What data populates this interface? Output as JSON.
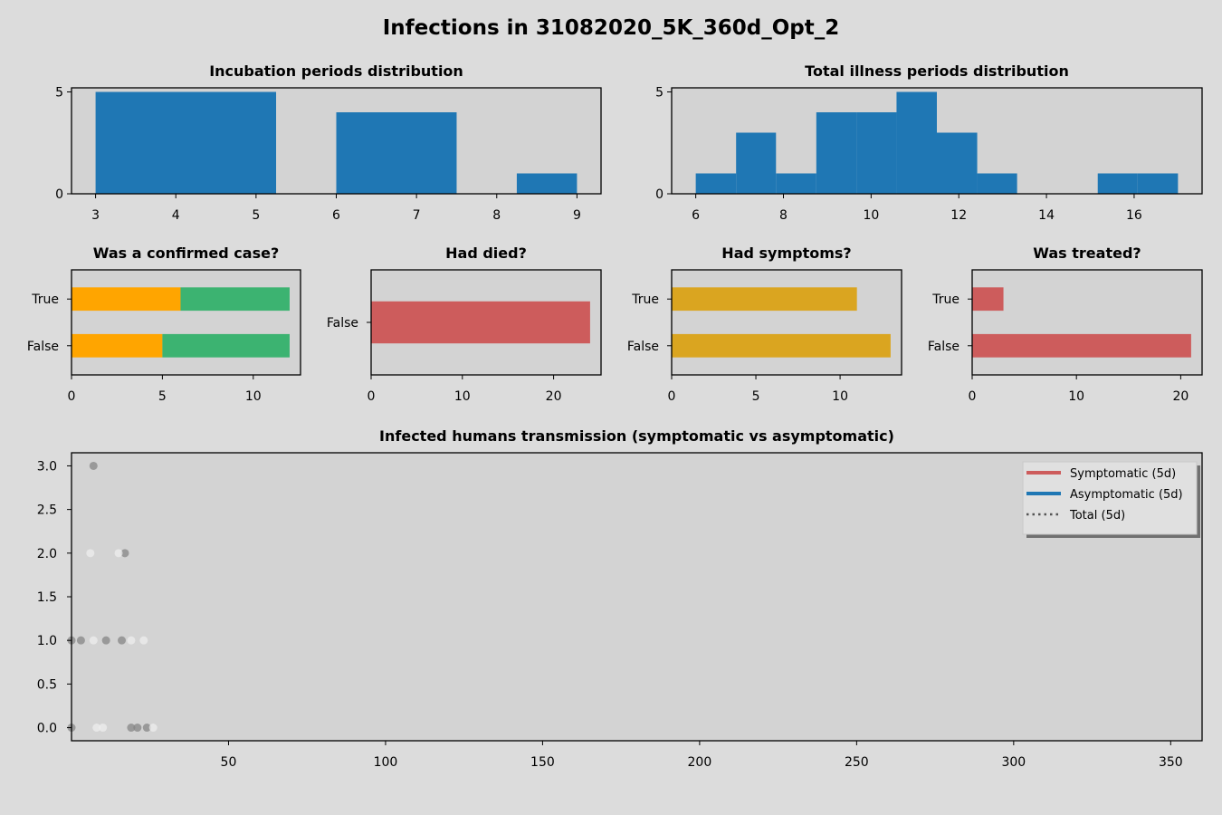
{
  "figure": {
    "title": "Infections in 31082020_5K_360d_Opt_2",
    "background": "#dcdcdc",
    "axes_facecolor": "#d3d3d3"
  },
  "chart_data": [
    {
      "id": "incubation",
      "type": "bar",
      "subtype": "histogram",
      "title": "Incubation periods distribution",
      "xlim": [
        2.7,
        9.3
      ],
      "ylim": [
        0,
        5.2
      ],
      "xticks": [
        3,
        4,
        5,
        6,
        7,
        8,
        9
      ],
      "yticks": [
        0,
        5
      ],
      "bins": [
        {
          "x0": 3.0,
          "x1": 5.25,
          "count": 5
        },
        {
          "x0": 6.0,
          "x1": 7.5,
          "count": 4
        },
        {
          "x0": 8.25,
          "x1": 9.0,
          "count": 1
        }
      ],
      "color": "#1f77b4"
    },
    {
      "id": "illness",
      "type": "bar",
      "subtype": "histogram",
      "title": "Total illness periods distribution",
      "xlim": [
        5.45,
        17.55
      ],
      "ylim": [
        0,
        5.2
      ],
      "xticks": [
        6,
        8,
        10,
        12,
        14,
        16
      ],
      "yticks": [
        0,
        5
      ],
      "bins": [
        {
          "x0": 6.0,
          "x1": 6.92,
          "count": 1
        },
        {
          "x0": 6.92,
          "x1": 7.83,
          "count": 3
        },
        {
          "x0": 7.83,
          "x1": 8.75,
          "count": 1
        },
        {
          "x0": 8.75,
          "x1": 9.67,
          "count": 4
        },
        {
          "x0": 9.67,
          "x1": 10.58,
          "count": 4
        },
        {
          "x0": 10.58,
          "x1": 11.5,
          "count": 5
        },
        {
          "x0": 11.5,
          "x1": 12.42,
          "count": 3
        },
        {
          "x0": 12.42,
          "x1": 13.33,
          "count": 1
        },
        {
          "x0": 15.17,
          "x1": 16.08,
          "count": 1
        },
        {
          "x0": 16.08,
          "x1": 17.0,
          "count": 1
        }
      ],
      "color": "#1f77b4"
    },
    {
      "id": "confirmed",
      "type": "bar",
      "subtype": "stacked-horizontal",
      "title": "Was a confirmed case?",
      "categories": [
        "False",
        "True"
      ],
      "xlim": [
        0,
        12.6
      ],
      "xticks": [
        0,
        5,
        10
      ],
      "series": [
        {
          "values": [
            5,
            6
          ],
          "color": "#ffa500"
        },
        {
          "values": [
            7,
            6
          ],
          "color": "#3cb371"
        }
      ]
    },
    {
      "id": "died",
      "type": "bar",
      "subtype": "horizontal",
      "title": "Had died?",
      "categories": [
        "False"
      ],
      "xlim": [
        0,
        25.2
      ],
      "xticks": [
        0,
        10,
        20
      ],
      "values": [
        24
      ],
      "colors": [
        "#cd5c5c"
      ]
    },
    {
      "id": "symptoms",
      "type": "bar",
      "subtype": "horizontal",
      "title": "Had symptoms?",
      "categories": [
        "False",
        "True"
      ],
      "xlim": [
        0,
        13.65
      ],
      "xticks": [
        0,
        5,
        10
      ],
      "values": [
        13,
        11
      ],
      "colors": [
        "#daa520",
        "#daa520"
      ]
    },
    {
      "id": "treated",
      "type": "bar",
      "subtype": "horizontal",
      "title": "Was treated?",
      "categories": [
        "False",
        "True"
      ],
      "xlim": [
        0,
        22.05
      ],
      "xticks": [
        0,
        10,
        20
      ],
      "values": [
        21,
        3
      ],
      "colors": [
        "#cd5c5c",
        "#cd5c5c"
      ]
    },
    {
      "id": "transmission",
      "type": "scatter",
      "title": "Infected humans transmission (symptomatic vs asymptomatic)",
      "xlim": [
        0,
        360
      ],
      "ylim": [
        -0.15,
        3.15
      ],
      "xticks": [
        50,
        100,
        150,
        200,
        250,
        300,
        350
      ],
      "yticks": [
        0.0,
        0.5,
        1.0,
        1.5,
        2.0,
        2.5,
        3.0
      ],
      "ytick_labels": [
        "0.0",
        "0.5",
        "1.0",
        "1.5",
        "2.0",
        "2.5",
        "3.0"
      ],
      "series": [
        {
          "role": "symptomatic-points",
          "color": "#808080",
          "points": [
            [
              0,
              0
            ],
            [
              0,
              1
            ],
            [
              3,
              1
            ],
            [
              7,
              3
            ],
            [
              11,
              1
            ],
            [
              16,
              1
            ],
            [
              17,
              2
            ],
            [
              19,
              0
            ],
            [
              21,
              0
            ],
            [
              24,
              0
            ]
          ]
        },
        {
          "role": "asymptomatic-points",
          "color": "#f0f0f0",
          "points": [
            [
              6,
              2
            ],
            [
              7,
              1
            ],
            [
              8,
              0
            ],
            [
              10,
              0
            ],
            [
              15,
              2
            ],
            [
              19,
              1
            ],
            [
              23,
              1
            ],
            [
              26,
              0
            ]
          ]
        }
      ],
      "legend": {
        "position": "top-right",
        "entries": [
          {
            "label": "Symptomatic (5d)",
            "color": "#cd5c5c",
            "style": "solid"
          },
          {
            "label": "Asymptomatic (5d)",
            "color": "#1f77b4",
            "style": "solid"
          },
          {
            "label": "Total (5d)",
            "color": "#555555",
            "style": "dotted"
          }
        ]
      }
    }
  ]
}
